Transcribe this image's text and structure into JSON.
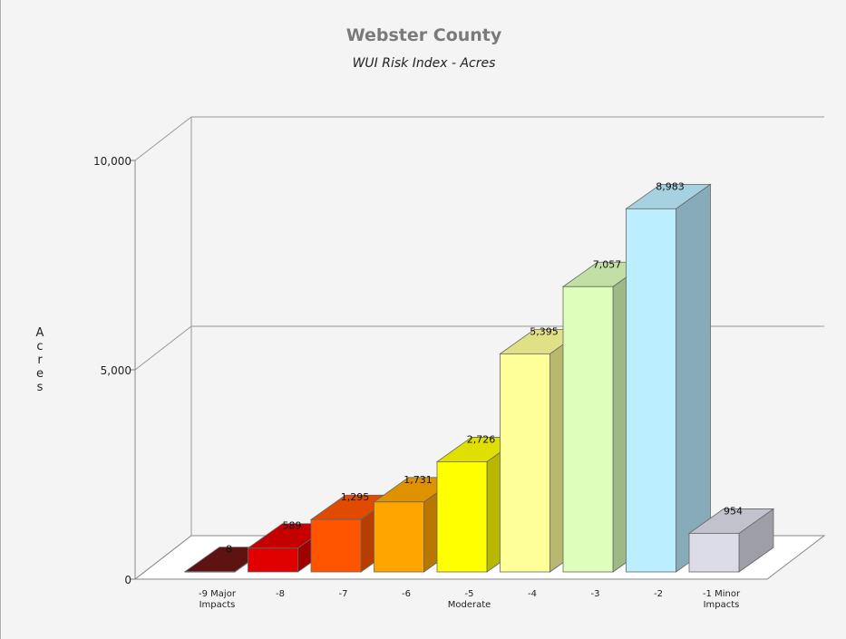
{
  "chart_data": {
    "type": "bar",
    "title": "Webster County",
    "subtitle": "WUI Risk Index - Acres",
    "ylabel": "Acres",
    "xlabel": "",
    "ylim": [
      0,
      10000
    ],
    "yticks": [
      "0",
      "5,000",
      "10,000"
    ],
    "categories": [
      "-9 Major Impacts",
      "-8",
      "-7",
      "-6",
      "-5 Moderate",
      "-4",
      "-3",
      "-2",
      "-1 Minor Impacts"
    ],
    "values": [
      8,
      589,
      1295,
      1731,
      2726,
      5395,
      7057,
      8983,
      954
    ],
    "value_labels": [
      "8",
      "589",
      "1,295",
      "1,731",
      "2,726",
      "5,395",
      "7,057",
      "8,983",
      "954"
    ],
    "colors": [
      "#6b1414",
      "#e00000",
      "#ff5500",
      "#ffa500",
      "#ffff00",
      "#ffff99",
      "#ddffbb",
      "#bbeeff",
      "#dcdce8"
    ],
    "grid": true,
    "legend": "none",
    "style": "3d"
  }
}
